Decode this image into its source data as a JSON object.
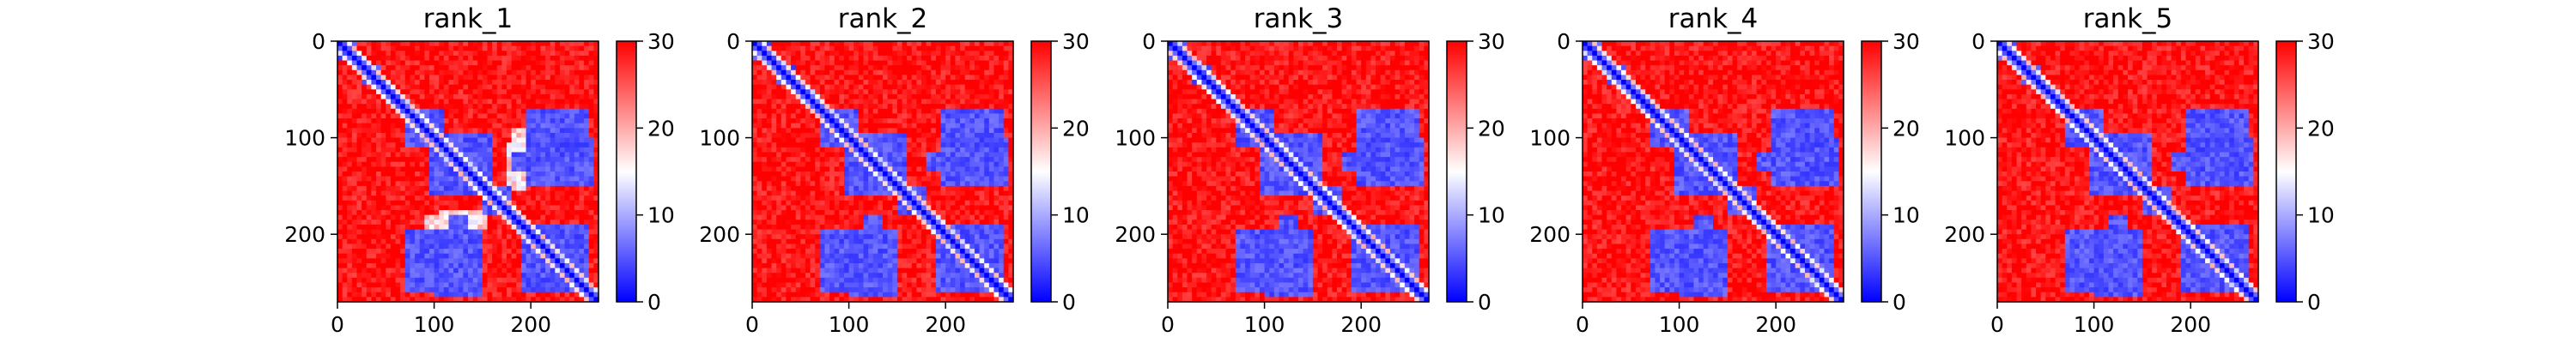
{
  "chart_data": [
    {
      "type": "heatmap",
      "title": "rank_1",
      "size": 270,
      "xlim": [
        0,
        270
      ],
      "ylim": [
        270,
        0
      ],
      "xticks": [
        0,
        100,
        200
      ],
      "yticks": [
        0,
        100,
        200
      ],
      "colorbar": {
        "range": [
          0,
          30
        ],
        "ticks": [
          0,
          10,
          20,
          30
        ],
        "colors": [
          "#0000ff",
          "#ffffff",
          "#ff0000"
        ]
      },
      "low_blocks": [
        [
          0,
          22
        ],
        [
          25,
          45
        ],
        [
          58,
          72
        ],
        [
          68,
          108
        ],
        [
          68,
          108,
          195,
          262
        ],
        [
          95,
          160
        ],
        [
          100,
          150,
          195,
          265
        ],
        [
          115,
          135,
          180,
          195
        ],
        [
          150,
          180
        ],
        [
          190,
          262
        ]
      ],
      "anomaly": [
        [
          90,
          140,
          180,
          205
        ],
        [
          105,
          155,
          175,
          195
        ]
      ]
    },
    {
      "type": "heatmap",
      "title": "rank_2",
      "size": 270,
      "xlim": [
        0,
        270
      ],
      "ylim": [
        270,
        0
      ],
      "xticks": [
        0,
        100,
        200
      ],
      "yticks": [
        0,
        100,
        200
      ],
      "colorbar": {
        "range": [
          0,
          30
        ],
        "ticks": [
          0,
          10,
          20,
          30
        ],
        "colors": [
          "#0000ff",
          "#ffffff",
          "#ff0000"
        ]
      },
      "low_blocks": [
        [
          0,
          22
        ],
        [
          25,
          45
        ],
        [
          58,
          72
        ],
        [
          68,
          108
        ],
        [
          68,
          108,
          195,
          262
        ],
        [
          95,
          160
        ],
        [
          100,
          150,
          195,
          265
        ],
        [
          115,
          135,
          180,
          195
        ],
        [
          150,
          180
        ],
        [
          190,
          262
        ]
      ],
      "anomaly": []
    },
    {
      "type": "heatmap",
      "title": "rank_3",
      "size": 270,
      "xlim": [
        0,
        270
      ],
      "ylim": [
        270,
        0
      ],
      "xticks": [
        0,
        100,
        200
      ],
      "yticks": [
        0,
        100,
        200
      ],
      "colorbar": {
        "range": [
          0,
          30
        ],
        "ticks": [
          0,
          10,
          20,
          30
        ],
        "colors": [
          "#0000ff",
          "#ffffff",
          "#ff0000"
        ]
      },
      "low_blocks": [
        [
          0,
          22
        ],
        [
          25,
          45
        ],
        [
          58,
          72
        ],
        [
          68,
          108
        ],
        [
          68,
          108,
          195,
          262
        ],
        [
          95,
          160
        ],
        [
          100,
          150,
          195,
          265
        ],
        [
          115,
          135,
          180,
          195
        ],
        [
          150,
          180
        ],
        [
          190,
          262
        ]
      ],
      "anomaly": []
    },
    {
      "type": "heatmap",
      "title": "rank_4",
      "size": 270,
      "xlim": [
        0,
        270
      ],
      "ylim": [
        270,
        0
      ],
      "xticks": [
        0,
        100,
        200
      ],
      "yticks": [
        0,
        100,
        200
      ],
      "colorbar": {
        "range": [
          0,
          30
        ],
        "ticks": [
          0,
          10,
          20,
          30
        ],
        "colors": [
          "#0000ff",
          "#ffffff",
          "#ff0000"
        ]
      },
      "low_blocks": [
        [
          0,
          22
        ],
        [
          25,
          45
        ],
        [
          58,
          72
        ],
        [
          68,
          108
        ],
        [
          68,
          108,
          195,
          262
        ],
        [
          95,
          160
        ],
        [
          100,
          150,
          195,
          265
        ],
        [
          115,
          135,
          180,
          195
        ],
        [
          150,
          180
        ],
        [
          190,
          262
        ]
      ],
      "anomaly": []
    },
    {
      "type": "heatmap",
      "title": "rank_5",
      "size": 270,
      "xlim": [
        0,
        270
      ],
      "ylim": [
        270,
        0
      ],
      "xticks": [
        0,
        100,
        200
      ],
      "yticks": [
        0,
        100,
        200
      ],
      "colorbar": {
        "range": [
          0,
          30
        ],
        "ticks": [
          0,
          10,
          20,
          30
        ],
        "colors": [
          "#0000ff",
          "#ffffff",
          "#ff0000"
        ]
      },
      "low_blocks": [
        [
          0,
          22
        ],
        [
          25,
          45
        ],
        [
          58,
          72
        ],
        [
          68,
          108
        ],
        [
          68,
          108,
          195,
          262
        ],
        [
          95,
          160
        ],
        [
          100,
          150,
          195,
          265
        ],
        [
          115,
          135,
          180,
          195
        ],
        [
          150,
          180
        ],
        [
          190,
          262
        ]
      ],
      "anomaly": []
    }
  ]
}
